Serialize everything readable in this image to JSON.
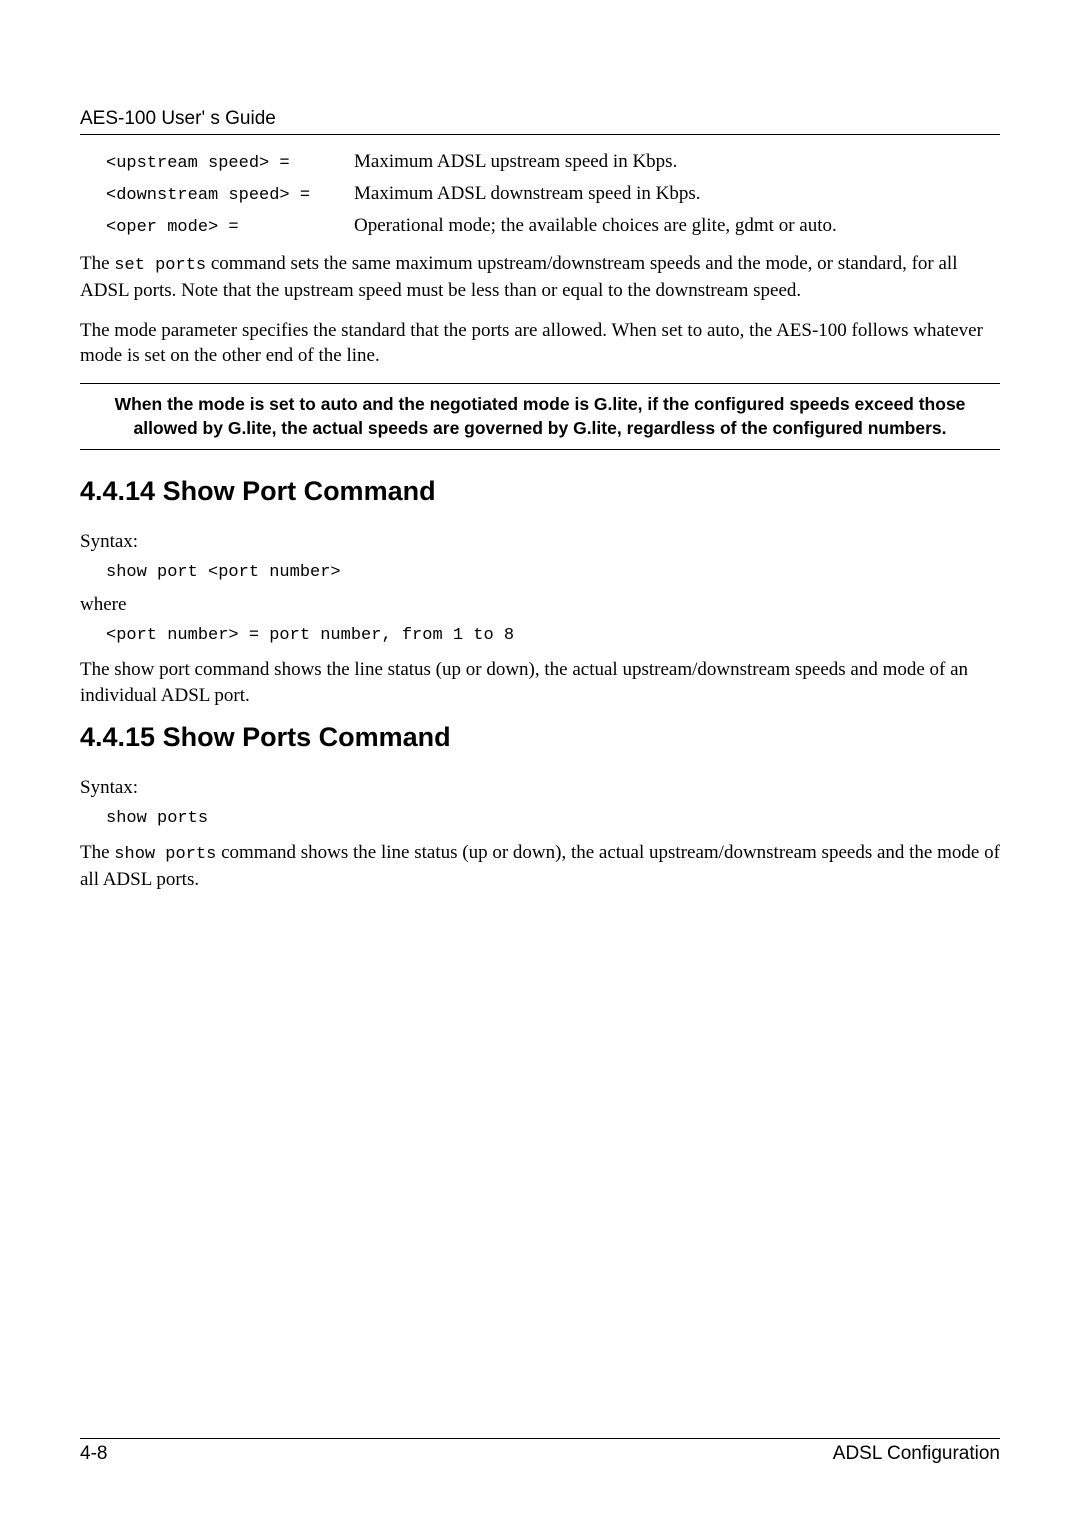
{
  "header": {
    "title": "AES-100 User' s Guide"
  },
  "params": {
    "rows": [
      {
        "code": "<upstream speed> =",
        "desc": "Maximum ADSL upstream speed in Kbps."
      },
      {
        "code": "<downstream speed> =",
        "desc": "Maximum ADSL downstream speed in Kbps."
      },
      {
        "code": "<oper mode> =",
        "desc": "Operational mode; the available choices are glite, gdmt or auto."
      }
    ]
  },
  "paragraphs": {
    "p1_pre": "The ",
    "p1_code": "set ports",
    "p1_post": " command sets the same maximum upstream/downstream speeds and the mode, or standard, for all ADSL ports.  Note that the upstream speed must be less than or equal to the downstream speed.",
    "p2": "The mode parameter specifies the standard that the ports are allowed.  When set to auto, the AES-100 follows whatever mode is set on the other end of the line."
  },
  "note": {
    "text": "When the mode is set to auto and the negotiated mode is G.lite, if the configured speeds exceed those allowed by G.lite, the actual speeds are governed by G.lite, regardless of the configured numbers."
  },
  "section_4_4_14": {
    "heading": "4.4.14  Show Port Command",
    "syntax_label": "Syntax:",
    "syntax_code": "show port <port number>",
    "where_label": "where",
    "where_code": "<port number> = port number, from 1 to 8",
    "desc": "The show port command shows the line status (up or down), the actual upstream/downstream speeds and mode of an individual ADSL port."
  },
  "section_4_4_15": {
    "heading": "4.4.15  Show Ports Command",
    "syntax_label": "Syntax:",
    "syntax_code": "show ports",
    "desc_pre": "The ",
    "desc_code": "show ports",
    "desc_post": " command shows the line status (up or down), the actual upstream/downstream speeds and the mode of all ADSL ports."
  },
  "footer": {
    "page": "4-8",
    "section": "ADSL Configuration"
  }
}
